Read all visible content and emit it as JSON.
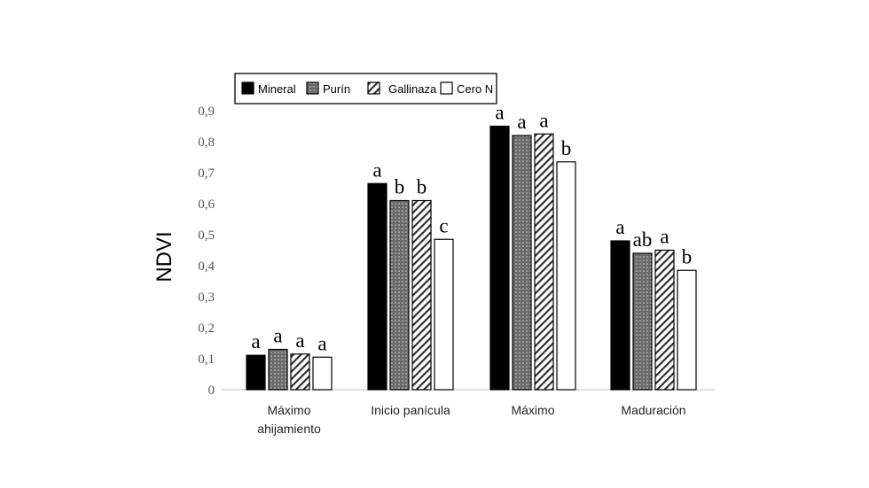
{
  "chart_data": {
    "type": "bar",
    "title": "",
    "xlabel": "",
    "ylabel": "NDVI",
    "ylim": [
      0,
      0.9
    ],
    "yticks": [
      "0",
      "0,1",
      "0,2",
      "0,3",
      "0,4",
      "0,5",
      "0,6",
      "0,7",
      "0,8",
      "0,9"
    ],
    "categories": [
      [
        "Máximo",
        "ahijamiento"
      ],
      [
        "Inicio panícula"
      ],
      [
        "Máximo"
      ],
      [
        "Maduración"
      ]
    ],
    "legend_position": "top",
    "series": [
      {
        "name": "Mineral",
        "fill": "solid-black",
        "values": [
          0.111,
          0.665,
          0.85,
          0.48
        ],
        "letters": [
          "a",
          "a",
          "a",
          "a"
        ]
      },
      {
        "name": "Purín",
        "fill": "dotted-gray",
        "values": [
          0.13,
          0.61,
          0.82,
          0.44
        ],
        "letters": [
          "a",
          "b",
          "a",
          "ab"
        ]
      },
      {
        "name": "Gallinaza",
        "fill": "diagonal-hatch",
        "values": [
          0.115,
          0.61,
          0.825,
          0.45
        ],
        "letters": [
          "a",
          "b",
          "a",
          "a"
        ]
      },
      {
        "name": "Cero N",
        "fill": "white",
        "values": [
          0.105,
          0.485,
          0.735,
          0.385
        ],
        "letters": [
          "a",
          "c",
          "b",
          "b"
        ]
      }
    ]
  }
}
